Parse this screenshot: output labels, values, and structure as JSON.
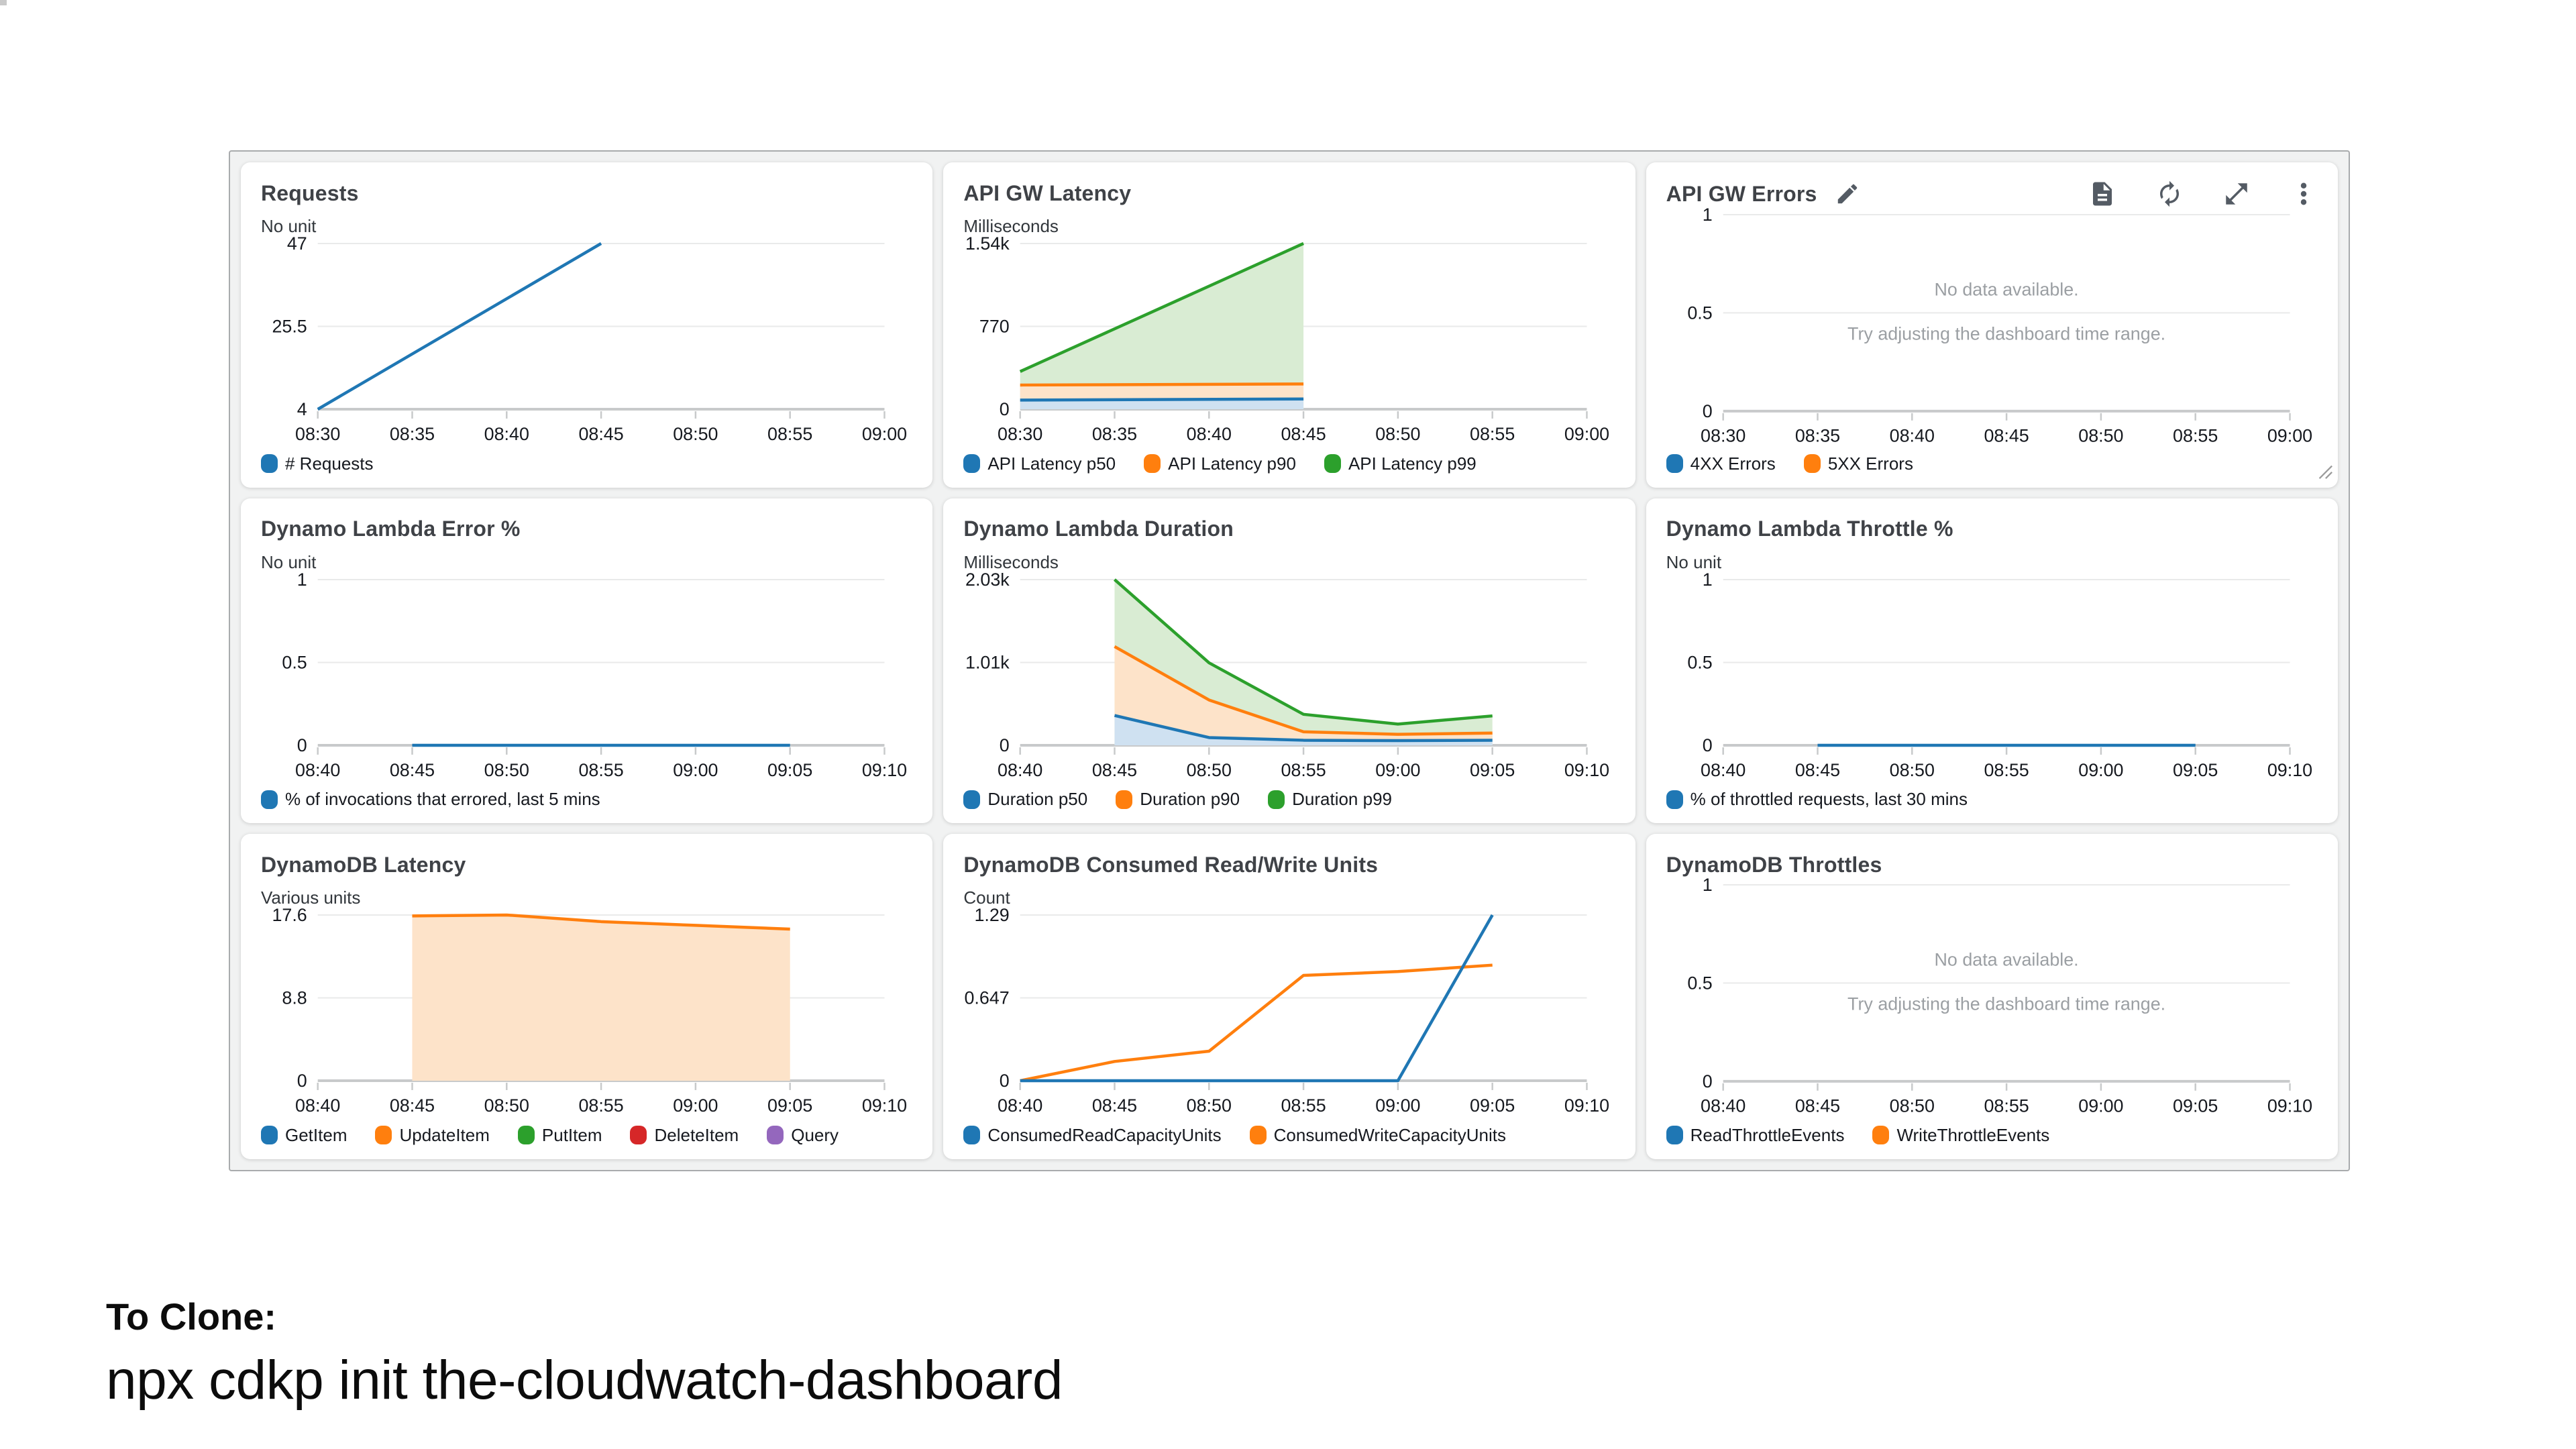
{
  "footer": {
    "line1": "To Clone:",
    "line2": "npx cdkp init the-cloudwatch-dashboard"
  },
  "no_data_text": {
    "line1": "No data available.",
    "line2": "Try adjusting the dashboard time range."
  },
  "icons": {
    "edit": "pencil-icon",
    "logs": "document-icon",
    "refresh": "refresh-icon",
    "expand": "expand-icon",
    "menu": "kebab-menu-icon",
    "resize": "resize-handle-icon"
  },
  "palette": {
    "blue": "#1f77b4",
    "orange": "#ff7f0e",
    "green": "#2ca02c",
    "red": "#d62728",
    "purple": "#9467bd",
    "blue_fill": "#cfe1f1",
    "orange_fill": "#fde3c9",
    "green_fill": "#d9ecd3",
    "grid_line": "#e9eaea",
    "axis_line": "#c8cacb",
    "no_data_gray": "#9b9fa3",
    "icon_gray": "#545b64"
  },
  "chart_data": [
    {
      "slug": "requests",
      "title": "Requests",
      "unit": "No unit",
      "type": "line",
      "no_data": false,
      "x_ticks": [
        "08:30",
        "08:35",
        "08:40",
        "08:45",
        "08:50",
        "08:55",
        "09:00"
      ],
      "x_range": [
        0,
        30
      ],
      "ylim": [
        4,
        47
      ],
      "y_tick_labels": [
        "47",
        "25.5",
        "4"
      ],
      "legend": [
        {
          "label": "# Requests",
          "color": "#1f77b4"
        }
      ],
      "series": [
        {
          "name": "# Requests",
          "kind": "line",
          "color": "#1f77b4",
          "points": [
            [
              0,
              4
            ],
            [
              15,
              47
            ]
          ]
        }
      ]
    },
    {
      "slug": "api-gw-latency",
      "title": "API GW Latency",
      "unit": "Milliseconds",
      "type": "area",
      "no_data": false,
      "x_ticks": [
        "08:30",
        "08:35",
        "08:40",
        "08:45",
        "08:50",
        "08:55",
        "09:00"
      ],
      "x_range": [
        0,
        30
      ],
      "ylim": [
        0,
        1540
      ],
      "y_tick_labels": [
        "1.54k",
        "770",
        "0"
      ],
      "legend": [
        {
          "label": "API Latency p50",
          "color": "#1f77b4"
        },
        {
          "label": "API Latency p90",
          "color": "#ff7f0e"
        },
        {
          "label": "API Latency p99",
          "color": "#2ca02c"
        }
      ],
      "series": [
        {
          "name": "API Latency p99",
          "kind": "area",
          "color": "#2ca02c",
          "fill": "#d9ecd3",
          "points": [
            [
              0,
              350
            ],
            [
              15,
              1540
            ]
          ]
        },
        {
          "name": "API Latency p90",
          "kind": "area",
          "color": "#ff7f0e",
          "fill": "#fde3c9",
          "points": [
            [
              0,
              225
            ],
            [
              15,
              235
            ]
          ]
        },
        {
          "name": "API Latency p50",
          "kind": "area",
          "color": "#1f77b4",
          "fill": "#cfe1f1",
          "points": [
            [
              0,
              85
            ],
            [
              15,
              95
            ]
          ]
        }
      ]
    },
    {
      "slug": "api-gw-errors",
      "title": "API GW Errors",
      "unit": null,
      "type": "empty",
      "no_data": true,
      "editable": true,
      "has_toolbar": true,
      "has_resize_handle": true,
      "x_ticks": [
        "08:30",
        "08:35",
        "08:40",
        "08:45",
        "08:50",
        "08:55",
        "09:00"
      ],
      "x_range": [
        0,
        30
      ],
      "ylim": [
        0,
        1
      ],
      "y_tick_labels": [
        "1",
        "0.5",
        "0"
      ],
      "legend": [
        {
          "label": "4XX Errors",
          "color": "#1f77b4"
        },
        {
          "label": "5XX Errors",
          "color": "#ff7f0e"
        }
      ],
      "series": []
    },
    {
      "slug": "dynamo-lambda-error-pct",
      "title": "Dynamo Lambda Error %",
      "unit": "No unit",
      "type": "line",
      "no_data": false,
      "x_ticks": [
        "08:40",
        "08:45",
        "08:50",
        "08:55",
        "09:00",
        "09:05",
        "09:10"
      ],
      "x_range": [
        0,
        30
      ],
      "ylim": [
        0,
        1
      ],
      "y_tick_labels": [
        "1",
        "0.5",
        "0"
      ],
      "legend": [
        {
          "label": "% of invocations that errored, last 5 mins",
          "color": "#1f77b4"
        }
      ],
      "series": [
        {
          "name": "% of invocations that errored, last 5 mins",
          "kind": "line",
          "color": "#1f77b4",
          "points": [
            [
              5,
              0
            ],
            [
              25,
              0
            ]
          ]
        }
      ]
    },
    {
      "slug": "dynamo-lambda-duration",
      "title": "Dynamo Lambda Duration",
      "unit": "Milliseconds",
      "type": "area",
      "no_data": false,
      "x_ticks": [
        "08:40",
        "08:45",
        "08:50",
        "08:55",
        "09:00",
        "09:05",
        "09:10"
      ],
      "x_range": [
        0,
        30
      ],
      "ylim": [
        0,
        2030
      ],
      "y_tick_labels": [
        "2.03k",
        "1.01k",
        "0"
      ],
      "legend": [
        {
          "label": "Duration p50",
          "color": "#1f77b4"
        },
        {
          "label": "Duration p90",
          "color": "#ff7f0e"
        },
        {
          "label": "Duration p99",
          "color": "#2ca02c"
        }
      ],
      "series": [
        {
          "name": "Duration p99",
          "kind": "area",
          "color": "#2ca02c",
          "fill": "#d9ecd3",
          "points": [
            [
              5,
              2030
            ],
            [
              10,
              1010
            ],
            [
              15,
              380
            ],
            [
              20,
              260
            ],
            [
              25,
              360
            ]
          ]
        },
        {
          "name": "Duration p90",
          "kind": "area",
          "color": "#ff7f0e",
          "fill": "#fde3c9",
          "points": [
            [
              5,
              1210
            ],
            [
              10,
              555
            ],
            [
              15,
              165
            ],
            [
              20,
              135
            ],
            [
              25,
              150
            ]
          ]
        },
        {
          "name": "Duration p50",
          "kind": "area",
          "color": "#1f77b4",
          "fill": "#cfe1f1",
          "points": [
            [
              5,
              365
            ],
            [
              10,
              95
            ],
            [
              15,
              62
            ],
            [
              20,
              57
            ],
            [
              25,
              62
            ]
          ]
        }
      ]
    },
    {
      "slug": "dynamo-lambda-throttle-pct",
      "title": "Dynamo Lambda Throttle %",
      "unit": "No unit",
      "type": "line",
      "no_data": false,
      "x_ticks": [
        "08:40",
        "08:45",
        "08:50",
        "08:55",
        "09:00",
        "09:05",
        "09:10"
      ],
      "x_range": [
        0,
        30
      ],
      "ylim": [
        0,
        1
      ],
      "y_tick_labels": [
        "1",
        "0.5",
        "0"
      ],
      "legend": [
        {
          "label": "% of throttled requests, last 30 mins",
          "color": "#1f77b4"
        }
      ],
      "series": [
        {
          "name": "% of throttled requests, last 30 mins",
          "kind": "line",
          "color": "#1f77b4",
          "points": [
            [
              5,
              0
            ],
            [
              25,
              0
            ]
          ]
        }
      ]
    },
    {
      "slug": "dynamodb-latency",
      "title": "DynamoDB Latency",
      "unit": "Various units",
      "type": "area",
      "no_data": false,
      "x_ticks": [
        "08:40",
        "08:45",
        "08:50",
        "08:55",
        "09:00",
        "09:05",
        "09:10"
      ],
      "x_range": [
        0,
        30
      ],
      "ylim": [
        0,
        17.6
      ],
      "y_tick_labels": [
        "17.6",
        "8.8",
        "0"
      ],
      "legend": [
        {
          "label": "GetItem",
          "color": "#1f77b4"
        },
        {
          "label": "UpdateItem",
          "color": "#ff7f0e"
        },
        {
          "label": "PutItem",
          "color": "#2ca02c"
        },
        {
          "label": "DeleteItem",
          "color": "#d62728"
        },
        {
          "label": "Query",
          "color": "#9467bd"
        }
      ],
      "series": [
        {
          "name": "UpdateItem",
          "kind": "area",
          "color": "#ff7f0e",
          "fill": "#fde3c9",
          "points": [
            [
              5,
              17.5
            ],
            [
              10,
              17.6
            ],
            [
              15,
              16.9
            ],
            [
              20,
              16.5
            ],
            [
              25,
              16.1
            ]
          ]
        }
      ]
    },
    {
      "slug": "dynamodb-consumed-read-write-units",
      "title": "DynamoDB Consumed Read/Write Units",
      "unit": "Count",
      "type": "line",
      "no_data": false,
      "x_ticks": [
        "08:40",
        "08:45",
        "08:50",
        "08:55",
        "09:00",
        "09:05",
        "09:10"
      ],
      "x_range": [
        0,
        30
      ],
      "ylim": [
        0,
        1.29
      ],
      "y_tick_labels": [
        "1.29",
        "0.647",
        "0"
      ],
      "legend": [
        {
          "label": "ConsumedReadCapacityUnits",
          "color": "#1f77b4"
        },
        {
          "label": "ConsumedWriteCapacityUnits",
          "color": "#ff7f0e"
        }
      ],
      "series": [
        {
          "name": "ConsumedWriteCapacityUnits",
          "kind": "line",
          "color": "#ff7f0e",
          "points": [
            [
              0,
              0
            ],
            [
              5,
              0.15
            ],
            [
              10,
              0.23
            ],
            [
              15,
              0.82
            ],
            [
              20,
              0.85
            ],
            [
              25,
              0.9
            ]
          ]
        },
        {
          "name": "ConsumedReadCapacityUnits",
          "kind": "line",
          "color": "#1f77b4",
          "points": [
            [
              0,
              0
            ],
            [
              20,
              0
            ],
            [
              25,
              1.29
            ]
          ]
        }
      ]
    },
    {
      "slug": "dynamodb-throttles",
      "title": "DynamoDB Throttles",
      "unit": null,
      "type": "empty",
      "no_data": true,
      "x_ticks": [
        "08:40",
        "08:45",
        "08:50",
        "08:55",
        "09:00",
        "09:05",
        "09:10"
      ],
      "x_range": [
        0,
        30
      ],
      "ylim": [
        0,
        1
      ],
      "y_tick_labels": [
        "1",
        "0.5",
        "0"
      ],
      "legend": [
        {
          "label": "ReadThrottleEvents",
          "color": "#1f77b4"
        },
        {
          "label": "WriteThrottleEvents",
          "color": "#ff7f0e"
        }
      ],
      "series": []
    }
  ]
}
